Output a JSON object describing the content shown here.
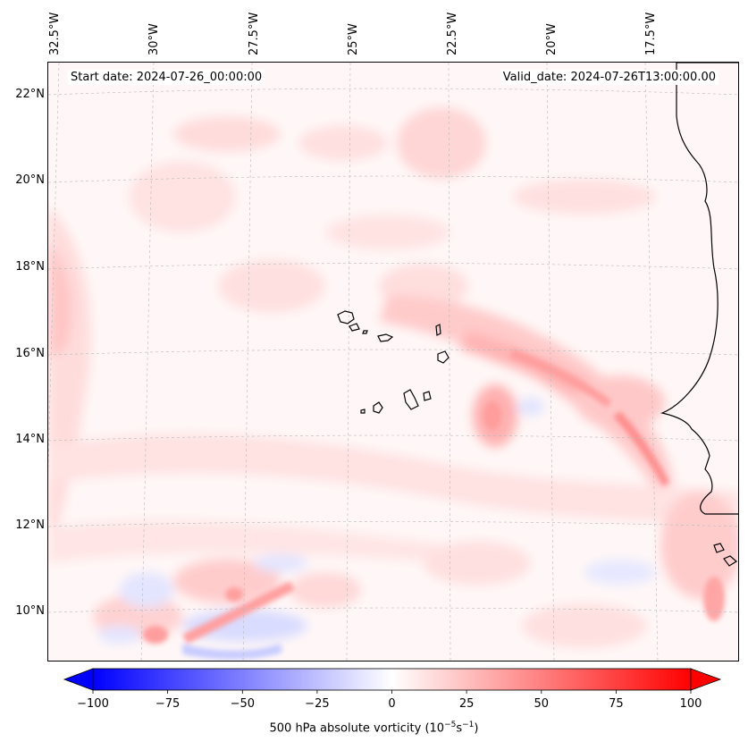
{
  "header": {
    "start_date": "Start date: 2024-07-26_00:00:00",
    "valid_date": "Valid_date: 2024-07-26T13:00:00.00"
  },
  "map": {
    "lon_labels": [
      "32.5°W",
      "30°W",
      "27.5°W",
      "25°W",
      "22.5°W",
      "20°W",
      "17.5°W"
    ],
    "lat_labels": [
      "22°N",
      "20°N",
      "18°N",
      "16°N",
      "14°N",
      "12°N",
      "10°N"
    ],
    "colors": {
      "background": "#fff8f8",
      "coast": "#000000",
      "grid": "#b0b0b0"
    }
  },
  "colorbar": {
    "ticks": [
      "−100",
      "−75",
      "−50",
      "−25",
      "0",
      "25",
      "50",
      "75",
      "100"
    ],
    "label": "500 hPa absolute vorticity (10",
    "label_exp1": "−5",
    "label_mid": "s",
    "label_exp2": "−1",
    "label_end": ")",
    "colors": {
      "min": "#0000ff",
      "mid": "#ffffff",
      "max": "#ff0000"
    }
  }
}
